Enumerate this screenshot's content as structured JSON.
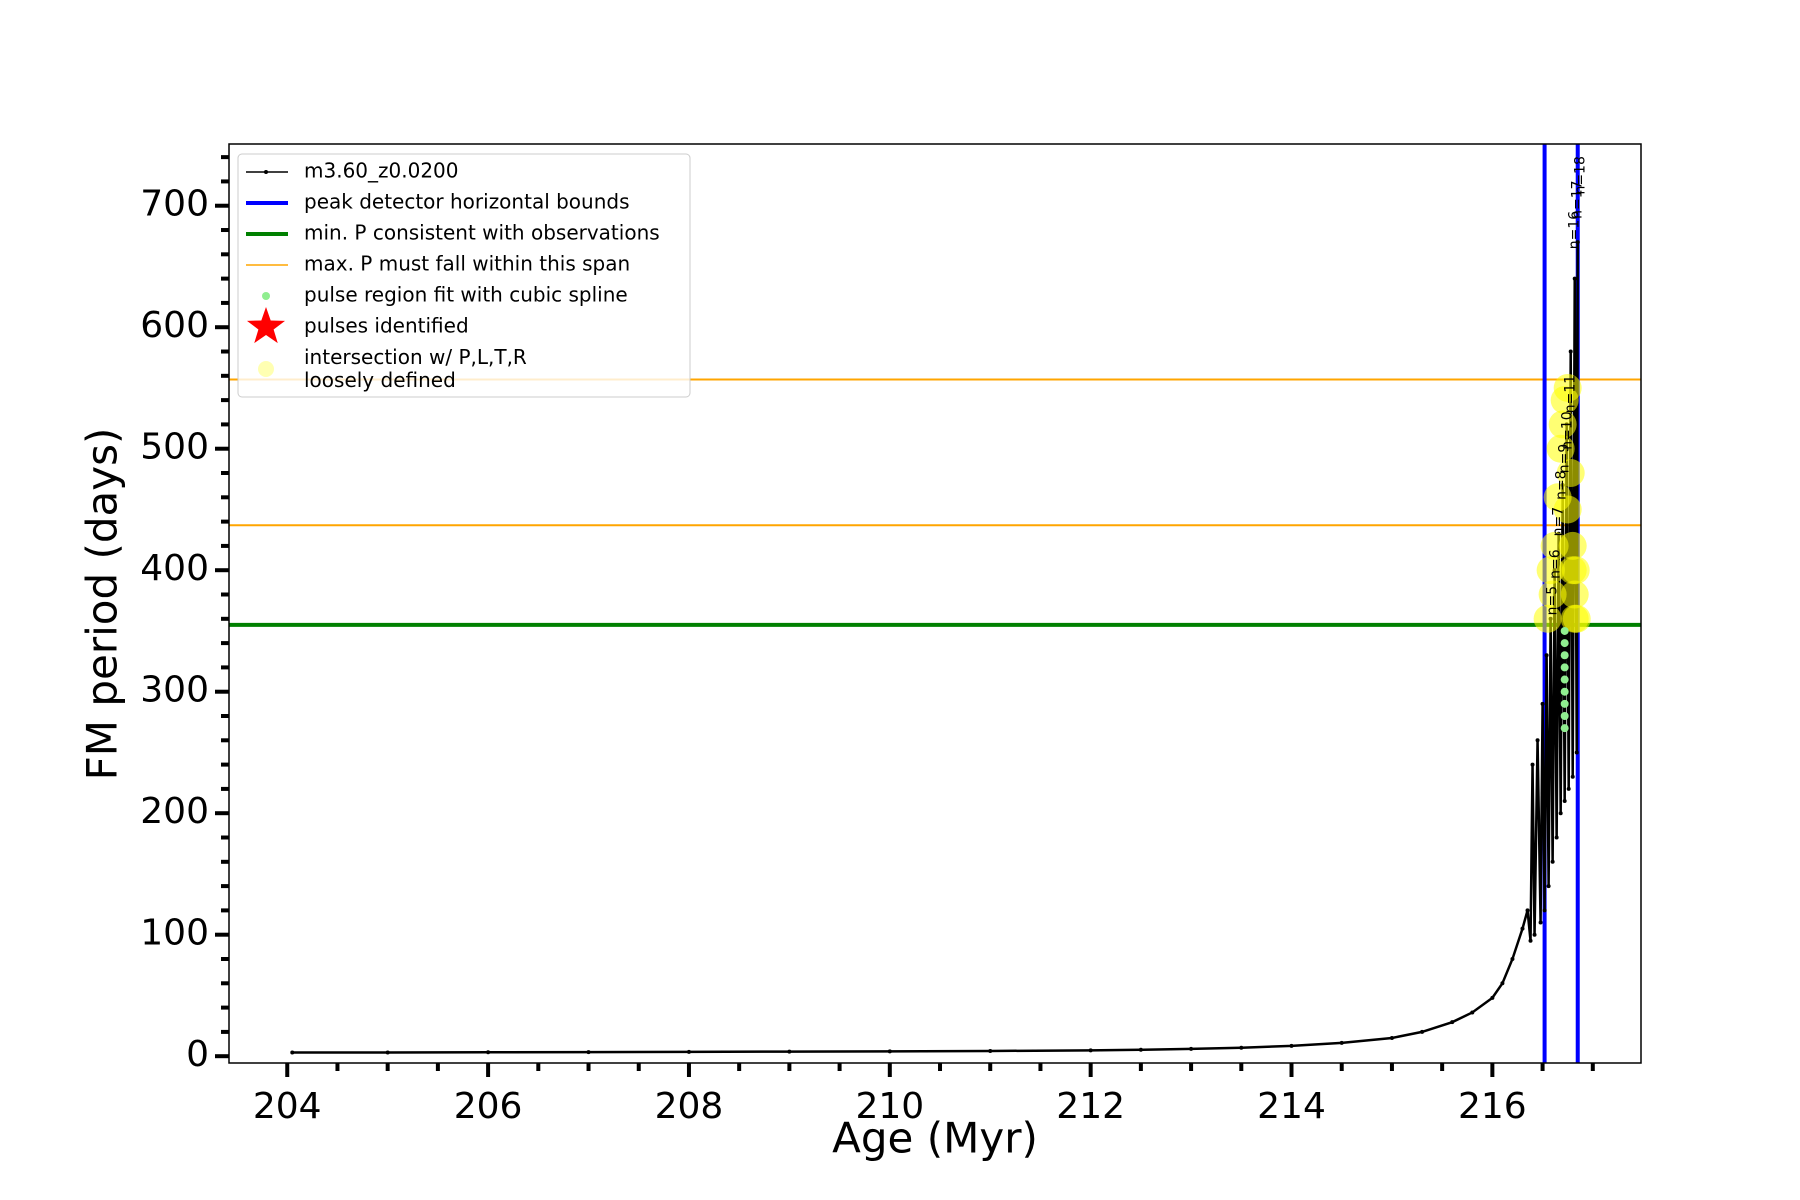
{
  "chart_data": {
    "type": "line",
    "xlabel": "Age (Myr)",
    "ylabel": "FM period (days)",
    "xlim": [
      203.42,
      217.48
    ],
    "ylim": [
      -5.6,
      750.8
    ],
    "xticks": [
      204,
      206,
      208,
      210,
      212,
      214,
      216
    ],
    "yticks": [
      0,
      100,
      200,
      300,
      400,
      500,
      600,
      700
    ],
    "xminorticks": [
      204.5,
      205,
      205.5,
      206.5,
      207,
      207.5,
      208.5,
      209,
      209.5,
      210.5,
      211,
      211.5,
      212.5,
      213,
      213.5,
      214.5,
      215,
      215.5,
      216.5,
      217
    ],
    "yminorticks": [
      20,
      40,
      60,
      80,
      120,
      140,
      160,
      180,
      220,
      240,
      260,
      280,
      320,
      340,
      360,
      380,
      420,
      440,
      460,
      480,
      520,
      540,
      560,
      580,
      620,
      640,
      660,
      680,
      720,
      740
    ],
    "legend": "upper left",
    "series": [
      {
        "name": "m3.60_z0.0200",
        "kind": "line",
        "color": "#000000",
        "x": [
          204.05,
          205,
          206,
          207,
          208,
          209,
          210,
          211,
          212,
          212.5,
          213,
          213.5,
          214,
          214.5,
          215,
          215.3,
          215.6,
          215.8,
          216.0,
          216.1,
          216.2,
          216.3,
          216.35,
          216.38,
          216.4,
          216.42,
          216.45,
          216.48,
          216.5,
          216.52,
          216.54,
          216.56,
          216.58,
          216.6,
          216.62,
          216.64,
          216.66,
          216.68,
          216.7,
          216.72,
          216.74,
          216.76,
          216.78,
          216.8,
          216.82,
          216.84,
          216.85
        ],
        "values": [
          3,
          3,
          3.2,
          3.4,
          3.6,
          3.8,
          4,
          4.3,
          4.8,
          5.3,
          6,
          7,
          8.5,
          11,
          15,
          20,
          28,
          36,
          48,
          60,
          80,
          105,
          120,
          95,
          240,
          100,
          260,
          110,
          290,
          120,
          330,
          140,
          360,
          160,
          400,
          180,
          430,
          200,
          470,
          210,
          520,
          220,
          580,
          230,
          640,
          250,
          670
        ]
      },
      {
        "name": "peak detector horizontal bounds",
        "kind": "vline",
        "color": "#0000ff",
        "x": [
          216.52,
          216.85
        ]
      },
      {
        "name": "min. P consistent with observations",
        "kind": "hline",
        "color": "#008000",
        "values": [
          355
        ]
      },
      {
        "name": "max. P must fall within this span",
        "kind": "hline",
        "color": "#ffa500",
        "values": [
          437,
          557
        ]
      },
      {
        "name": "pulse region fit with cubic spline",
        "kind": "scatter",
        "color": "#90ee90",
        "x": [
          216.72,
          216.72,
          216.72,
          216.72,
          216.72,
          216.72,
          216.72,
          216.72,
          216.72
        ],
        "values": [
          270,
          280,
          290,
          300,
          310,
          320,
          330,
          340,
          350
        ]
      },
      {
        "name": "pulses identified",
        "kind": "star",
        "color": "#ff0000",
        "x": [],
        "values": []
      },
      {
        "name": "intersection w/ P,L,T,R\nloosely defined",
        "kind": "blob",
        "color": "#ffff00",
        "x": [
          216.55,
          216.58,
          216.6,
          216.62,
          216.65,
          216.68,
          216.72,
          216.75,
          216.8,
          216.82,
          216.84,
          216.8,
          216.7,
          216.75,
          216.82,
          216.78,
          216.83
        ],
        "values": [
          360,
          400,
          380,
          420,
          460,
          500,
          540,
          550,
          400,
          380,
          360,
          420,
          520,
          450,
          360,
          480,
          400
        ]
      }
    ],
    "annotations": [
      {
        "text": "n=5",
        "x": 216.6,
        "y": 375
      },
      {
        "text": "n=6",
        "x": 216.63,
        "y": 405
      },
      {
        "text": "n=7",
        "x": 216.66,
        "y": 440
      },
      {
        "text": "n=8",
        "x": 216.69,
        "y": 470
      },
      {
        "text": "n=9",
        "x": 216.72,
        "y": 492
      },
      {
        "text": "n=10",
        "x": 216.75,
        "y": 515
      },
      {
        "text": "n=11",
        "x": 216.78,
        "y": 545
      },
      {
        "text": "n=16",
        "x": 216.82,
        "y": 680
      },
      {
        "text": "n=17",
        "x": 216.85,
        "y": 705
      },
      {
        "text": "n=18",
        "x": 216.88,
        "y": 725
      }
    ]
  }
}
